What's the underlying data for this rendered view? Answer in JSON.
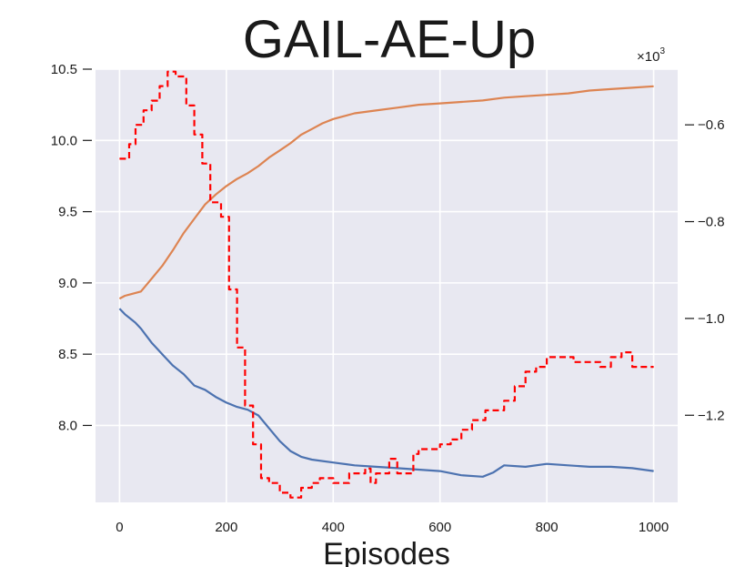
{
  "chart_data": {
    "type": "line",
    "title": "GAIL-AE-Up",
    "xlabel": "Episodes",
    "ylabel": "",
    "ylabel_right": "",
    "xlim": [
      -45,
      1045
    ],
    "ylim_left": [
      7.46,
      10.5
    ],
    "ylim_right": [
      -1.38,
      -0.485
    ],
    "x_ticks": [
      0,
      200,
      400,
      600,
      800,
      1000
    ],
    "y_ticks_left": [
      8.0,
      8.5,
      9.0,
      9.5,
      10.0,
      10.5
    ],
    "y_tick_labels_left": [
      "8.0",
      "8.5",
      "9.0",
      "9.5",
      "10.0",
      "10.5"
    ],
    "y_ticks_right": [
      -1.2,
      -1.0,
      -0.8,
      -0.6
    ],
    "y_tick_labels_right": [
      "−1.2",
      "−1.0",
      "−0.8",
      "−0.6"
    ],
    "right_axis_multiplier": "×10",
    "right_axis_multiplier_exp": "3",
    "grid": true,
    "background": "#e8e8f1",
    "series": [
      {
        "axis": "left",
        "color": "#4c72b0",
        "style": "solid",
        "x": [
          0,
          10,
          20,
          30,
          40,
          50,
          60,
          80,
          100,
          120,
          140,
          160,
          180,
          200,
          220,
          240,
          260,
          280,
          300,
          320,
          340,
          360,
          400,
          440,
          480,
          520,
          560,
          600,
          640,
          680,
          700,
          720,
          760,
          800,
          840,
          880,
          920,
          960,
          1000
        ],
        "y": [
          8.82,
          8.78,
          8.75,
          8.72,
          8.68,
          8.63,
          8.58,
          8.5,
          8.42,
          8.36,
          8.28,
          8.25,
          8.2,
          8.16,
          8.13,
          8.11,
          8.07,
          7.98,
          7.89,
          7.82,
          7.78,
          7.76,
          7.74,
          7.72,
          7.71,
          7.7,
          7.69,
          7.68,
          7.65,
          7.64,
          7.67,
          7.72,
          7.71,
          7.73,
          7.72,
          7.71,
          7.71,
          7.7,
          7.68
        ]
      },
      {
        "axis": "left",
        "color": "#dd8452",
        "style": "solid",
        "x": [
          0,
          10,
          20,
          40,
          60,
          80,
          100,
          120,
          140,
          160,
          180,
          200,
          220,
          240,
          260,
          280,
          300,
          320,
          340,
          360,
          380,
          400,
          440,
          480,
          520,
          560,
          600,
          640,
          680,
          720,
          760,
          800,
          840,
          880,
          920,
          960,
          1000
        ],
        "y": [
          8.89,
          8.91,
          8.92,
          8.94,
          9.03,
          9.12,
          9.23,
          9.35,
          9.45,
          9.55,
          9.62,
          9.68,
          9.73,
          9.77,
          9.82,
          9.88,
          9.93,
          9.98,
          10.04,
          10.08,
          10.12,
          10.15,
          10.19,
          10.21,
          10.23,
          10.25,
          10.26,
          10.27,
          10.28,
          10.3,
          10.31,
          10.32,
          10.33,
          10.35,
          10.36,
          10.37,
          10.38
        ]
      },
      {
        "axis": "right",
        "color": "#ff0000",
        "style": "dashed",
        "x": [
          0,
          18,
          18,
          30,
          30,
          45,
          45,
          60,
          60,
          75,
          75,
          90,
          90,
          105,
          105,
          125,
          125,
          140,
          140,
          155,
          155,
          170,
          170,
          190,
          190,
          205,
          205,
          220,
          220,
          235,
          235,
          250,
          250,
          265,
          265,
          280,
          280,
          300,
          300,
          320,
          320,
          340,
          340,
          360,
          360,
          375,
          375,
          400,
          400,
          430,
          430,
          460,
          460,
          470,
          470,
          480,
          480,
          505,
          505,
          520,
          520,
          535,
          535,
          550,
          550,
          560,
          560,
          600,
          600,
          620,
          620,
          640,
          640,
          660,
          660,
          685,
          685,
          720,
          720,
          740,
          740,
          760,
          760,
          780,
          780,
          800,
          800,
          820,
          820,
          850,
          850,
          900,
          900,
          920,
          920,
          940,
          940,
          960,
          960,
          1000
        ],
        "y": [
          -0.67,
          -0.67,
          -0.64,
          -0.64,
          -0.6,
          -0.6,
          -0.57,
          -0.57,
          -0.55,
          -0.55,
          -0.52,
          -0.52,
          -0.49,
          -0.49,
          -0.5,
          -0.5,
          -0.56,
          -0.56,
          -0.62,
          -0.62,
          -0.68,
          -0.68,
          -0.76,
          -0.76,
          -0.79,
          -0.79,
          -0.94,
          -0.94,
          -1.06,
          -1.06,
          -1.18,
          -1.18,
          -1.26,
          -1.26,
          -1.33,
          -1.33,
          -1.34,
          -1.34,
          -1.36,
          -1.36,
          -1.37,
          -1.37,
          -1.35,
          -1.35,
          -1.34,
          -1.34,
          -1.33,
          -1.33,
          -1.34,
          -1.34,
          -1.32,
          -1.32,
          -1.31,
          -1.31,
          -1.34,
          -1.34,
          -1.32,
          -1.32,
          -1.29,
          -1.29,
          -1.32,
          -1.32,
          -1.32,
          -1.32,
          -1.28,
          -1.28,
          -1.27,
          -1.27,
          -1.26,
          -1.26,
          -1.25,
          -1.25,
          -1.23,
          -1.23,
          -1.21,
          -1.21,
          -1.19,
          -1.19,
          -1.17,
          -1.17,
          -1.14,
          -1.14,
          -1.11,
          -1.11,
          -1.1,
          -1.1,
          -1.08,
          -1.08,
          -1.08,
          -1.08,
          -1.09,
          -1.09,
          -1.1,
          -1.1,
          -1.08,
          -1.08,
          -1.07,
          -1.07,
          -1.1,
          -1.1
        ]
      }
    ]
  }
}
